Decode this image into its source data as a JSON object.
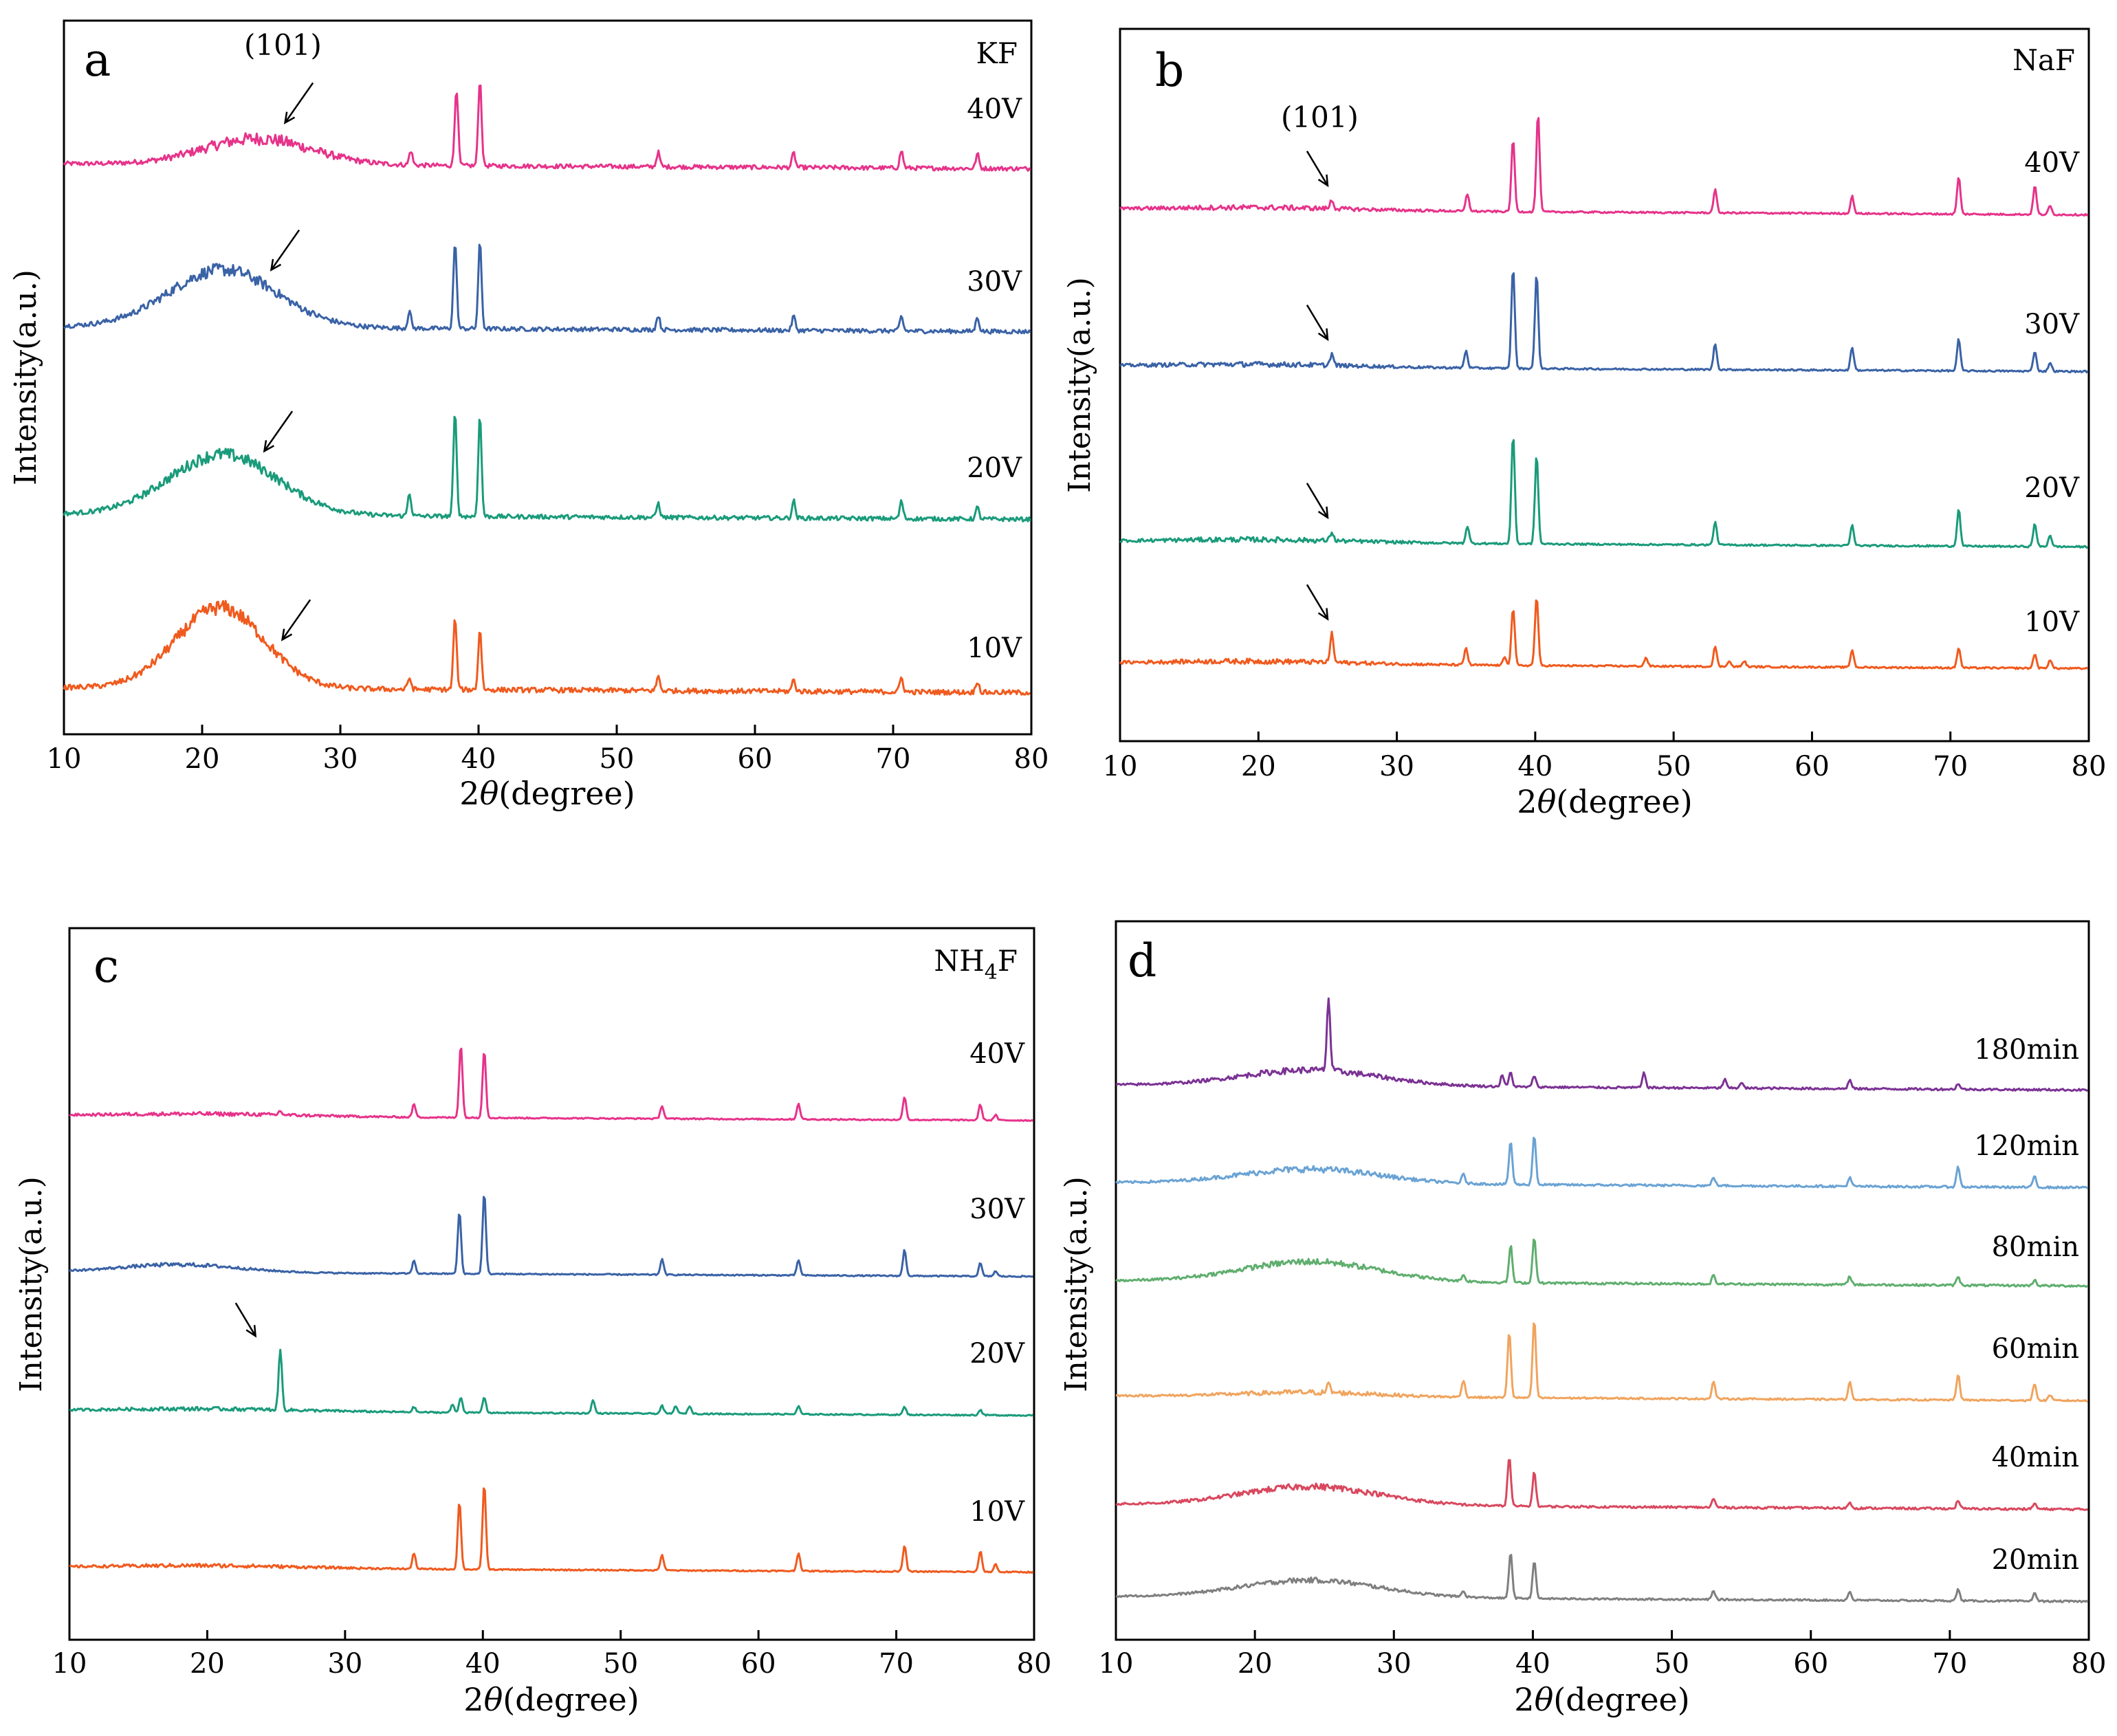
{
  "figure": {
    "description_free": true
  },
  "chart_data": [
    {
      "type": "line",
      "panel_letter": "a",
      "electrolyte": "KF",
      "xlabel_prefix": "2",
      "xlabel_theta": "θ",
      "xlabel_suffix": "(degree)",
      "ylabel": "Intensity(a.u.)",
      "xlim": [
        10,
        80
      ],
      "xticks": [
        10,
        20,
        30,
        40,
        50,
        60,
        70,
        80
      ],
      "peak_annotation": "(101)",
      "series": [
        {
          "name": "40V",
          "color": "#e6338a",
          "hump": {
            "center": 24,
            "width": 5.5,
            "height": 0.9
          },
          "noise": 0.3,
          "peaks": [
            [
              35.1,
              0.5
            ],
            [
              38.4,
              2.7
            ],
            [
              40.1,
              3.0
            ],
            [
              53.0,
              0.5
            ],
            [
              62.8,
              0.5
            ],
            [
              70.6,
              0.6
            ],
            [
              76.1,
              0.5
            ]
          ],
          "arrow": {
            "x": 26.0,
            "dir": "up-right"
          }
        },
        {
          "name": "30V",
          "color": "#3a62a6",
          "hump": {
            "center": 21.5,
            "width": 5.5,
            "height": 2.0
          },
          "noise": 0.3,
          "peaks": [
            [
              35.0,
              0.6
            ],
            [
              38.3,
              3.0
            ],
            [
              40.1,
              3.0
            ],
            [
              53.0,
              0.5
            ],
            [
              62.8,
              0.5
            ],
            [
              70.6,
              0.5
            ],
            [
              76.1,
              0.5
            ]
          ],
          "arrow": {
            "x": 25.0,
            "dir": "up-right"
          }
        },
        {
          "name": "20V",
          "color": "#1a9b7b",
          "hump": {
            "center": 21.5,
            "width": 5.5,
            "height": 2.1
          },
          "noise": 0.3,
          "peaks": [
            [
              35.0,
              0.8
            ],
            [
              38.3,
              3.6
            ],
            [
              40.1,
              3.5
            ],
            [
              53.0,
              0.5
            ],
            [
              62.8,
              0.6
            ],
            [
              70.6,
              0.6
            ],
            [
              76.1,
              0.4
            ]
          ],
          "arrow": {
            "x": 24.5,
            "dir": "up-right"
          }
        },
        {
          "name": "10V",
          "color": "#f05a1e",
          "hump": {
            "center": 21.3,
            "width": 4.5,
            "height": 2.8
          },
          "noise": 0.35,
          "peaks": [
            [
              35.0,
              0.4
            ],
            [
              38.3,
              2.5
            ],
            [
              40.1,
              2.1
            ],
            [
              53.0,
              0.5
            ],
            [
              62.8,
              0.4
            ],
            [
              70.6,
              0.5
            ],
            [
              76.1,
              0.4
            ]
          ],
          "arrow": {
            "x": 25.8,
            "dir": "up-right"
          }
        }
      ]
    },
    {
      "type": "line",
      "panel_letter": "b",
      "electrolyte": "NaF",
      "xlabel_prefix": "2",
      "xlabel_theta": "θ",
      "xlabel_suffix": "(degree)",
      "ylabel": "Intensity(a.u.)",
      "xlim": [
        10,
        80
      ],
      "xticks": [
        10,
        20,
        30,
        40,
        50,
        60,
        70,
        80
      ],
      "peak_annotation": "(101)",
      "series": [
        {
          "name": "40V",
          "color": "#e6338a",
          "hump": {
            "center": 20,
            "width": 10,
            "height": 0.1
          },
          "noise": 0.12,
          "peaks": [
            [
              25.3,
              0.3
            ],
            [
              35.1,
              0.6
            ],
            [
              38.4,
              2.5
            ],
            [
              40.2,
              3.4
            ],
            [
              53.0,
              0.8
            ],
            [
              62.9,
              0.6
            ],
            [
              70.6,
              1.3
            ],
            [
              76.1,
              1.0
            ],
            [
              77.2,
              0.3
            ]
          ],
          "arrow": {
            "x": 25.0,
            "dir": "down-right"
          }
        },
        {
          "name": "30V",
          "color": "#3a62a6",
          "hump": {
            "center": 20,
            "width": 10,
            "height": 0.1
          },
          "noise": 0.12,
          "peaks": [
            [
              25.3,
              0.4
            ],
            [
              35.0,
              0.6
            ],
            [
              38.4,
              3.5
            ],
            [
              40.1,
              3.3
            ],
            [
              53.0,
              0.9
            ],
            [
              62.9,
              0.8
            ],
            [
              70.6,
              1.1
            ],
            [
              76.1,
              0.7
            ],
            [
              77.2,
              0.3
            ]
          ],
          "arrow": {
            "x": 25.0,
            "dir": "down-right"
          }
        },
        {
          "name": "20V",
          "color": "#1a9b7b",
          "hump": {
            "center": 20,
            "width": 10,
            "height": 0.1
          },
          "noise": 0.12,
          "peaks": [
            [
              25.3,
              0.3
            ],
            [
              35.1,
              0.6
            ],
            [
              38.4,
              3.8
            ],
            [
              40.1,
              3.1
            ],
            [
              53.0,
              0.8
            ],
            [
              62.9,
              0.7
            ],
            [
              70.6,
              1.3
            ],
            [
              76.1,
              0.8
            ],
            [
              77.2,
              0.4
            ]
          ],
          "arrow": {
            "x": 25.0,
            "dir": "down-right"
          }
        },
        {
          "name": "10V",
          "color": "#f05a1e",
          "hump": {
            "center": 20,
            "width": 10,
            "height": 0.1
          },
          "noise": 0.12,
          "peaks": [
            [
              25.3,
              1.0
            ],
            [
              35.0,
              0.6
            ],
            [
              37.8,
              0.3
            ],
            [
              38.4,
              2.0
            ],
            [
              40.1,
              2.4
            ],
            [
              48.0,
              0.3
            ],
            [
              53.0,
              0.7
            ],
            [
              54.0,
              0.2
            ],
            [
              55.1,
              0.2
            ],
            [
              62.9,
              0.6
            ],
            [
              70.6,
              0.7
            ],
            [
              76.1,
              0.5
            ],
            [
              77.2,
              0.3
            ]
          ],
          "arrow": {
            "x": 25.0,
            "dir": "down-right"
          }
        }
      ]
    },
    {
      "type": "line",
      "panel_letter": "c",
      "electrolyte_main": "NH",
      "electrolyte_sub": "4",
      "electrolyte_end": "F",
      "xlabel_prefix": "2",
      "xlabel_theta": "θ",
      "xlabel_suffix": "(degree)",
      "ylabel": "Intensity(a.u.)",
      "xlim": [
        10,
        80
      ],
      "xticks": [
        10,
        20,
        30,
        40,
        50,
        60,
        70,
        80
      ],
      "series": [
        {
          "name": "40V",
          "color": "#e6338a",
          "hump": {
            "center": 20,
            "width": 10,
            "height": 0.1
          },
          "noise": 0.1,
          "peaks": [
            [
              25.3,
              0.15
            ],
            [
              35.0,
              0.5
            ],
            [
              38.4,
              2.8
            ],
            [
              40.1,
              2.6
            ],
            [
              53.0,
              0.5
            ],
            [
              62.9,
              0.6
            ],
            [
              70.6,
              0.9
            ],
            [
              76.1,
              0.6
            ],
            [
              77.2,
              0.2
            ]
          ]
        },
        {
          "name": "30V",
          "color": "#3a62a6",
          "hump": {
            "center": 18,
            "width": 6,
            "height": 0.3
          },
          "noise": 0.1,
          "peaks": [
            [
              35.0,
              0.5
            ],
            [
              38.3,
              2.4
            ],
            [
              40.1,
              3.1
            ],
            [
              53.0,
              0.6
            ],
            [
              62.9,
              0.6
            ],
            [
              70.6,
              1.0
            ],
            [
              76.1,
              0.5
            ],
            [
              77.2,
              0.2
            ]
          ]
        },
        {
          "name": "20V",
          "color": "#1a9b7b",
          "hump": {
            "center": 20,
            "width": 10,
            "height": 0.1
          },
          "noise": 0.1,
          "peaks": [
            [
              25.3,
              2.3
            ],
            [
              35.0,
              0.2
            ],
            [
              37.8,
              0.3
            ],
            [
              38.4,
              0.6
            ],
            [
              40.1,
              0.6
            ],
            [
              48.0,
              0.5
            ],
            [
              53.0,
              0.3
            ],
            [
              54.0,
              0.3
            ],
            [
              55.0,
              0.3
            ],
            [
              62.9,
              0.3
            ],
            [
              70.6,
              0.3
            ],
            [
              76.1,
              0.2
            ]
          ],
          "arrow": {
            "x": 23.5,
            "dir": "down-right"
          }
        },
        {
          "name": "10V",
          "color": "#f05a1e",
          "hump": {
            "center": 20,
            "width": 10,
            "height": 0.1
          },
          "noise": 0.1,
          "peaks": [
            [
              35.0,
              0.6
            ],
            [
              38.3,
              2.6
            ],
            [
              40.1,
              3.3
            ],
            [
              53.0,
              0.6
            ],
            [
              62.9,
              0.7
            ],
            [
              70.6,
              1.0
            ],
            [
              76.1,
              0.8
            ],
            [
              77.2,
              0.3
            ]
          ]
        }
      ]
    },
    {
      "type": "line",
      "panel_letter": "d",
      "xlabel_prefix": "2",
      "xlabel_theta": "θ",
      "xlabel_suffix": "(degree)",
      "ylabel": "Intensity(a.u.)",
      "xlim": [
        10,
        80
      ],
      "xticks": [
        10,
        20,
        30,
        40,
        50,
        60,
        70,
        80
      ],
      "series": [
        {
          "name": "180min",
          "color": "#7b3294",
          "hump": {
            "center": 24,
            "width": 7,
            "height": 0.55
          },
          "noise": 0.15,
          "peaks": [
            [
              25.3,
              2.5
            ],
            [
              37.8,
              0.4
            ],
            [
              38.4,
              0.5
            ],
            [
              40.1,
              0.4
            ],
            [
              48.0,
              0.5
            ],
            [
              53.8,
              0.3
            ],
            [
              55.0,
              0.2
            ],
            [
              62.8,
              0.3
            ],
            [
              70.6,
              0.2
            ]
          ]
        },
        {
          "name": "120min",
          "color": "#6aa3d4",
          "hump": {
            "center": 24,
            "width": 7,
            "height": 0.5
          },
          "noise": 0.15,
          "peaks": [
            [
              35.0,
              0.3
            ],
            [
              38.4,
              1.5
            ],
            [
              40.1,
              1.7
            ],
            [
              53.0,
              0.3
            ],
            [
              62.8,
              0.3
            ],
            [
              70.6,
              0.7
            ],
            [
              76.1,
              0.4
            ]
          ]
        },
        {
          "name": "80min",
          "color": "#5fae6e",
          "hump": {
            "center": 24,
            "width": 7,
            "height": 0.7
          },
          "noise": 0.15,
          "peaks": [
            [
              35.0,
              0.2
            ],
            [
              38.4,
              1.3
            ],
            [
              40.1,
              1.6
            ],
            [
              53.0,
              0.3
            ],
            [
              62.8,
              0.3
            ],
            [
              70.6,
              0.3
            ],
            [
              76.1,
              0.2
            ]
          ]
        },
        {
          "name": "60min",
          "color": "#f0a45e",
          "hump": {
            "center": 24,
            "width": 7,
            "height": 0.15
          },
          "noise": 0.12,
          "peaks": [
            [
              25.3,
              0.3
            ],
            [
              35.0,
              0.6
            ],
            [
              38.3,
              2.3
            ],
            [
              40.1,
              2.7
            ],
            [
              53.0,
              0.6
            ],
            [
              62.8,
              0.6
            ],
            [
              70.6,
              0.9
            ],
            [
              76.1,
              0.6
            ],
            [
              77.2,
              0.2
            ]
          ]
        },
        {
          "name": "40min",
          "color": "#d8485e",
          "hump": {
            "center": 24,
            "width": 7,
            "height": 0.65
          },
          "noise": 0.15,
          "peaks": [
            [
              38.3,
              1.7
            ],
            [
              40.1,
              1.2
            ],
            [
              53.0,
              0.3
            ],
            [
              62.8,
              0.2
            ],
            [
              70.6,
              0.3
            ],
            [
              76.1,
              0.2
            ]
          ]
        },
        {
          "name": "20min",
          "color": "#7f7f7f",
          "hump": {
            "center": 24,
            "width": 7,
            "height": 0.6
          },
          "noise": 0.12,
          "peaks": [
            [
              35.0,
              0.2
            ],
            [
              38.4,
              1.6
            ],
            [
              40.1,
              1.3
            ],
            [
              53.0,
              0.3
            ],
            [
              62.8,
              0.3
            ],
            [
              70.6,
              0.4
            ],
            [
              76.1,
              0.3
            ]
          ]
        }
      ]
    }
  ]
}
